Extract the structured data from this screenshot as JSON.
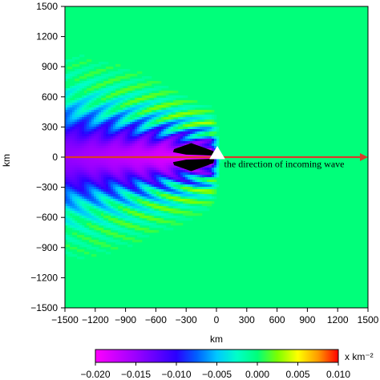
{
  "chart_data": {
    "type": "heatmap",
    "title": "",
    "xlabel": "km",
    "ylabel": "km",
    "xlim": [
      -1500,
      1500
    ],
    "ylim": [
      -1500,
      1500
    ],
    "xticks": [
      -1500,
      -1200,
      -900,
      -600,
      -300,
      0,
      300,
      600,
      900,
      1200,
      1500
    ],
    "yticks": [
      -1500,
      -1200,
      -900,
      -600,
      -300,
      0,
      300,
      600,
      900,
      1200,
      1500
    ],
    "xticklabels": [
      "−1500",
      "−1200",
      "−900",
      "−600",
      "−300",
      "0",
      "300",
      "600",
      "900",
      "1200",
      "1500"
    ],
    "yticklabels": [
      "−1500",
      "−1200",
      "−900",
      "−600",
      "−300",
      "0",
      "300",
      "600",
      "900",
      "1200",
      "1500"
    ],
    "field": {
      "description_hidden": false,
      "background_value": 0.0,
      "source": {
        "x": 0,
        "y": 0
      },
      "wake_direction": "negative-x"
    },
    "arrow": {
      "x_start": -1500,
      "x_end": 1500,
      "y": 0,
      "color": "#d93a2b"
    },
    "annotation": {
      "text": "the direction of incoming wave",
      "x": 60,
      "y": -100
    },
    "colorbar": {
      "label": "x km⁻²",
      "min": -0.02,
      "max": 0.01,
      "ticks": [
        -0.02,
        -0.015,
        -0.01,
        -0.005,
        0.0,
        0.005,
        0.01
      ],
      "ticklabels": [
        "−0.020",
        "−0.015",
        "−0.010",
        "−0.005",
        "0.000",
        "0.005",
        "0.010"
      ],
      "stops": [
        {
          "value": -0.02,
          "color": "#ff00ff"
        },
        {
          "value": -0.015,
          "color": "#9b00ff"
        },
        {
          "value": -0.01,
          "color": "#2a00ff"
        },
        {
          "value": -0.0075,
          "color": "#0060ff"
        },
        {
          "value": -0.005,
          "color": "#00c8ff"
        },
        {
          "value": -0.0025,
          "color": "#00ffc8"
        },
        {
          "value": 0.0,
          "color": "#00ff7a"
        },
        {
          "value": 0.0025,
          "color": "#7dff00"
        },
        {
          "value": 0.005,
          "color": "#ffff00"
        },
        {
          "value": 0.0075,
          "color": "#ff9a00"
        },
        {
          "value": 0.01,
          "color": "#ff0000"
        }
      ]
    }
  }
}
